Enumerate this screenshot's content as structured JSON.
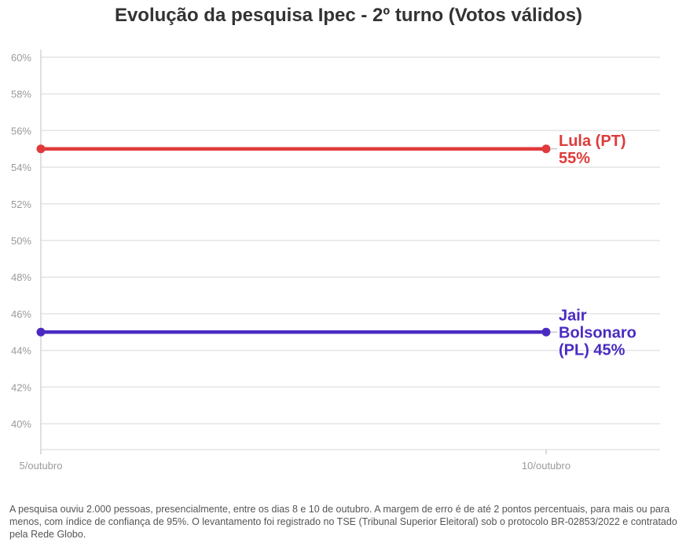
{
  "chart_data": {
    "type": "line",
    "title": "Evolução da pesquisa Ipec - 2º turno (Votos válidos)",
    "categories": [
      "5/outubro",
      "10/outubro"
    ],
    "y_ticks": [
      "40%",
      "42%",
      "44%",
      "46%",
      "48%",
      "50%",
      "52%",
      "54%",
      "56%",
      "58%",
      "60%"
    ],
    "ylim": [
      39,
      60
    ],
    "grid": true,
    "series": [
      {
        "name": "Lula (PT)",
        "values": [
          55,
          55
        ],
        "color": "#e03a3a",
        "label_lines": [
          "Lula (PT)",
          "55%"
        ]
      },
      {
        "name": "Jair Bolsonaro (PL)",
        "values": [
          45,
          45
        ],
        "color": "#4a2bc2",
        "label_lines": [
          "Jair",
          "Bolsonaro",
          "(PL) 45%"
        ]
      }
    ]
  },
  "footnote": "A pesquisa ouviu 2.000 pessoas, presencialmente, entre os dias 8 e 10 de outubro. A margem de erro é de até 2 pontos percentuais, para mais ou para menos, com índice de confiança de 95%. O levantamento foi registrado no TSE (Tribunal Superior Eleitoral) sob o protocolo BR-02853/2022 e contratado pela Rede Globo."
}
